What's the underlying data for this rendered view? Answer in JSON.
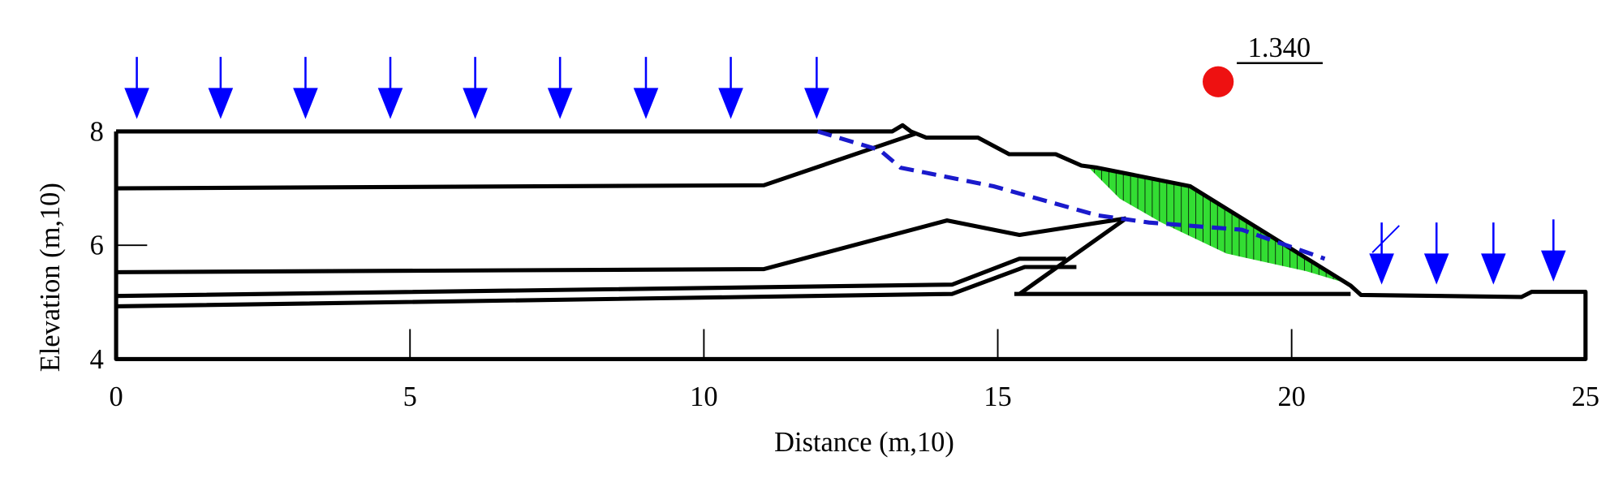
{
  "chart_data": {
    "type": "slope-stability",
    "xlabel": "Distance (m,10)",
    "ylabel": "Elevation (m,10)",
    "factor_of_safety": "1.340",
    "xlim": [
      0,
      25
    ],
    "ylim": [
      4,
      8
    ],
    "xticks": [
      0,
      5,
      10,
      15,
      20,
      25
    ],
    "yticks": [
      4,
      6,
      8
    ]
  }
}
